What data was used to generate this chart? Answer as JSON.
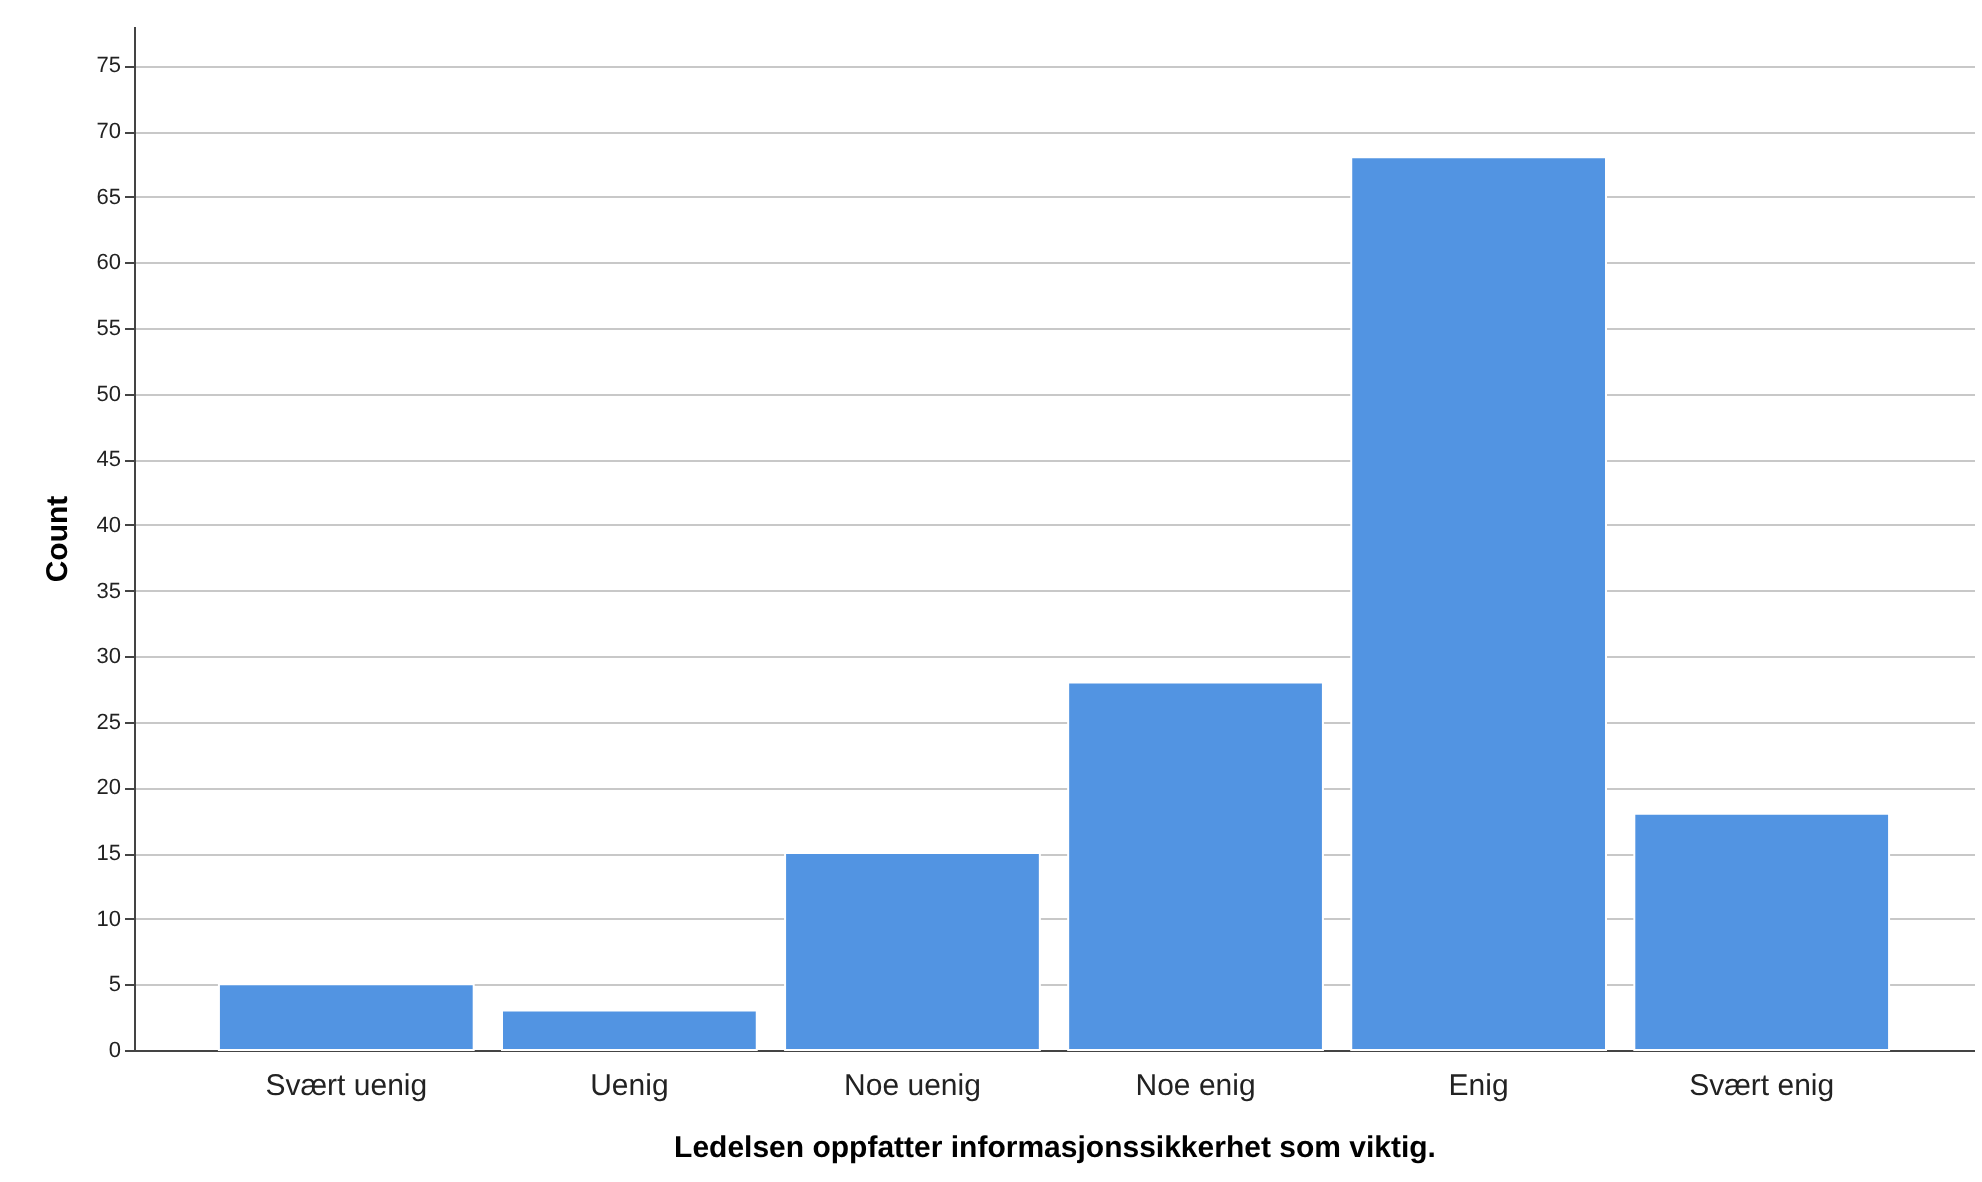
{
  "chart_data": {
    "type": "bar",
    "xlabel": "Ledelsen oppfatter informasjonssikkerhet som viktig.",
    "ylabel": "Count",
    "categories": [
      "Svært uenig",
      "Uenig",
      "Noe uenig",
      "Noe enig",
      "Enig",
      "Svært enig"
    ],
    "values": [
      5,
      3,
      15,
      28,
      68,
      18
    ],
    "color": "#5294e2",
    "ylim": [
      0,
      78
    ],
    "yticks": [
      0,
      5,
      10,
      15,
      20,
      25,
      30,
      35,
      40,
      45,
      50,
      55,
      60,
      65,
      70,
      75
    ],
    "grid": "y"
  }
}
